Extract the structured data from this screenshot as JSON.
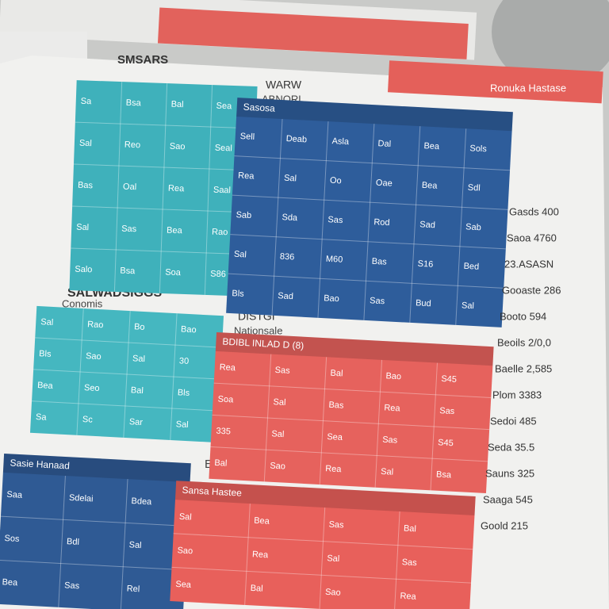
{
  "top_banner": "Ronuka Hastase",
  "sheet_a": {
    "title": "SMSARS",
    "cells": [
      "Sa",
      "Bsa",
      "Bal",
      "Sea",
      "Sal",
      "Reo",
      "Sao",
      "Seal",
      "Bas",
      "Oal",
      "Rea",
      "Saal",
      "Sal",
      "Sas",
      "Bea",
      "Rao",
      "Salo",
      "Bsa",
      "Soa",
      "S86"
    ]
  },
  "sheet_b": {
    "title": "WARW",
    "subtitle": "ABNORL",
    "header": "Sasosa",
    "cells": [
      "Sell",
      "Deab",
      "Asla",
      "Dal",
      "Bea",
      "Sols",
      "Rea",
      "Sal",
      "Oo",
      "Oae",
      "Bea",
      "Sdl",
      "Sab",
      "Sda",
      "Sas",
      "Rod",
      "Sad",
      "Sab",
      "Sal",
      "836",
      "M60",
      "Bas",
      "S16",
      "Bed",
      "Bls",
      "Sad",
      "Bao",
      "Sas",
      "Bud",
      "Sal"
    ]
  },
  "section_c": {
    "title": "SALWADSIGGS",
    "subtitle": "Conomis",
    "cells": [
      "Sal",
      "Rao",
      "Bo",
      "Bao",
      "Bls",
      "Sao",
      "Sal",
      "30",
      "Bea",
      "Seo",
      "Bal",
      "Bls",
      "Sa",
      "Sc",
      "Sar",
      "Sal"
    ]
  },
  "section_d": {
    "title": "DISTGI",
    "subtitle": "Nationsale",
    "header": "BDIBL INLAD D (8)",
    "cells": [
      "Rea",
      "Sas",
      "Bal",
      "Bao",
      "S45",
      "Soa",
      "Sal",
      "Bas",
      "Rea",
      "Sas",
      "335",
      "Sal",
      "Sea",
      "Sas",
      "S45",
      "Bal",
      "Sao",
      "Rea",
      "Sal",
      "Bsa"
    ]
  },
  "section_e": {
    "title": "EAR",
    "header": "Sasie Hanaad",
    "cells": [
      "Saa",
      "Sdelai",
      "Bdea",
      "Sos",
      "Bdl",
      "Sal",
      "Bea",
      "Sas",
      "Rel"
    ]
  },
  "section_f": {
    "header": "Sansa Hastee",
    "cells": [
      "Sal",
      "Bea",
      "Sas",
      "Bal",
      "Sao",
      "Rea",
      "Sal",
      "Sas",
      "Sea",
      "Bal",
      "Sao",
      "Rea"
    ]
  },
  "side_list": [
    "Gasds 400",
    "Saoa 4760",
    "23.ASASN",
    "Gooaste 286",
    "Booto 594",
    "Beoils 2/0,0",
    "Baelle 2,585",
    "Plom 3383",
    "Sedoi 485",
    "Seda 35.5",
    "Sauns 325",
    "Saaga 545",
    "Goold 215"
  ]
}
